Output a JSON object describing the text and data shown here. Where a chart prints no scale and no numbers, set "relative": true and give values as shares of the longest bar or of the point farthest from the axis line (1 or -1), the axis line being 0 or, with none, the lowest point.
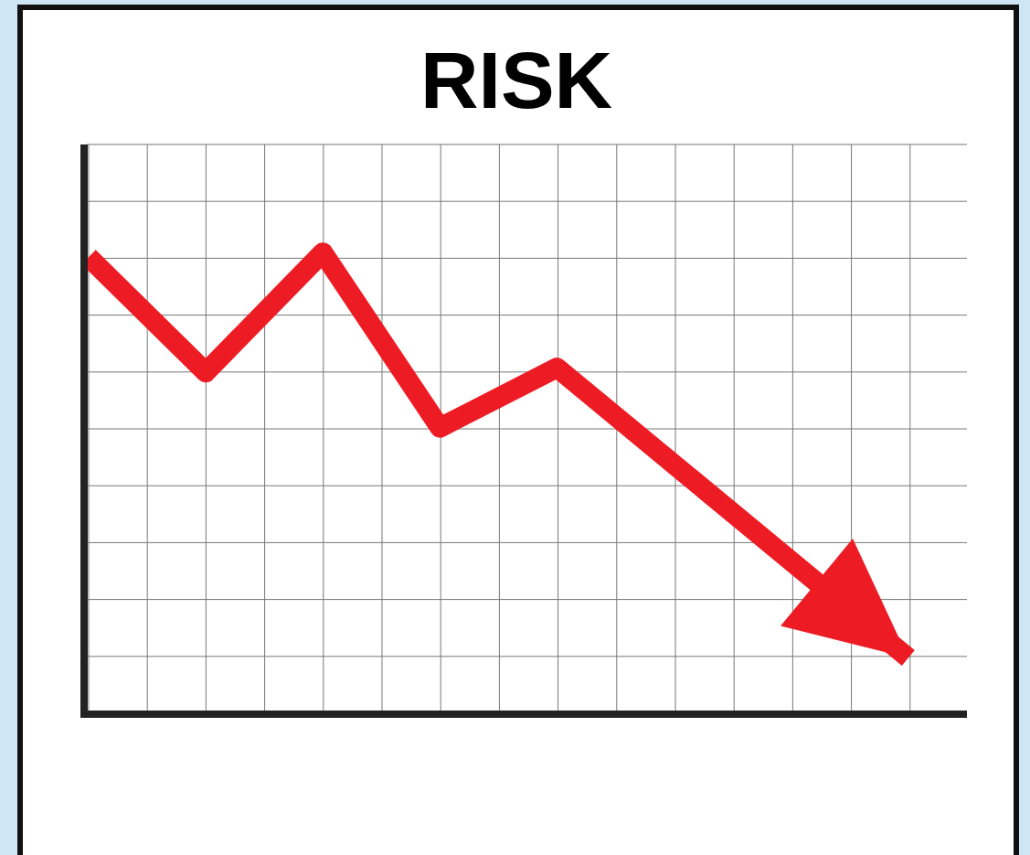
{
  "chart_data": {
    "type": "line",
    "title": "RISK",
    "relative": true,
    "categories": [
      null,
      null,
      null,
      null,
      null,
      null,
      null,
      null
    ],
    "series": [
      {
        "color": "#ed1c24",
        "values": [
          0.99,
          0.74,
          1,
          0.62,
          0.75,
          0.54,
          0.33,
          0.12
        ]
      }
    ],
    "grid": true,
    "marker": "none",
    "line_style": "solid"
  }
}
